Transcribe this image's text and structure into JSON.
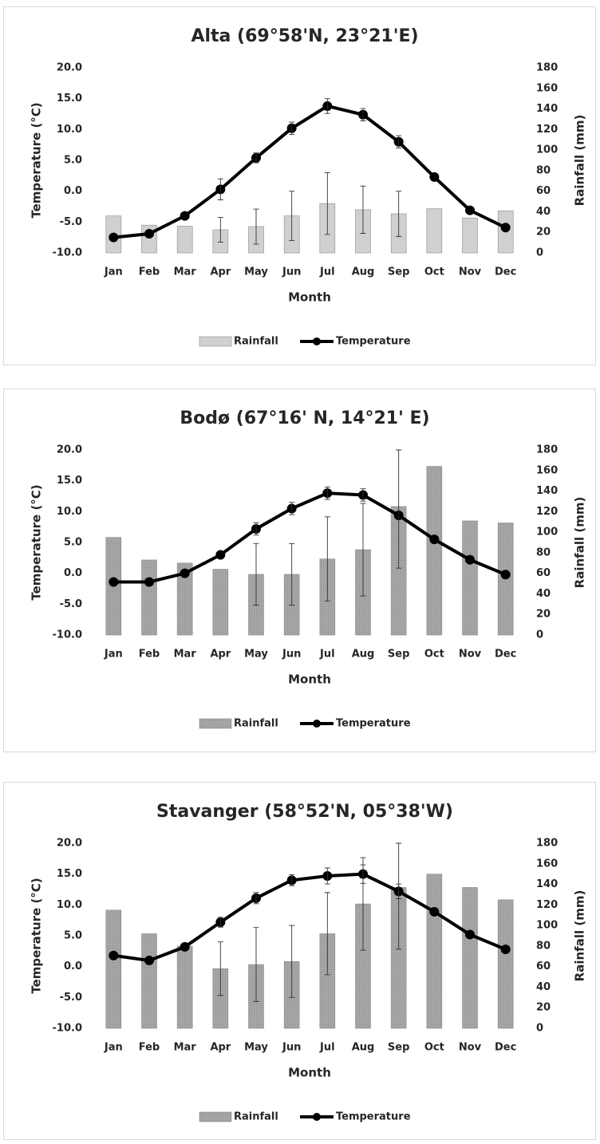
{
  "chart_data": [
    {
      "type": "combo",
      "title": "Alta (69°58'N, 23°21'E)",
      "x_label": "Month",
      "y_label": "Temperature (°C)",
      "y2_label": "Rainfall (mm)",
      "categories": [
        "Jan",
        "Feb",
        "Mar",
        "Apr",
        "May",
        "Jun",
        "Jul",
        "Aug",
        "Sep",
        "Oct",
        "Nov",
        "Dec"
      ],
      "ylim": [
        -10,
        20
      ],
      "yticks": [
        {
          "value": -10,
          "label": "-10.0"
        },
        {
          "value": -5,
          "label": "-5.0"
        },
        {
          "value": 0,
          "label": "0.0"
        },
        {
          "value": 5,
          "label": "5.0"
        },
        {
          "value": 10,
          "label": "10.0"
        },
        {
          "value": 15,
          "label": "15.0"
        },
        {
          "value": 20,
          "label": "20.0"
        }
      ],
      "y2lim": [
        0,
        180
      ],
      "y2ticks": [
        0,
        20,
        40,
        60,
        80,
        100,
        120,
        140,
        160,
        180
      ],
      "series": [
        {
          "name": "Rainfall",
          "type": "bar",
          "axis": "y2",
          "color": "#d0d0d0",
          "values": [
            36,
            27,
            26,
            22.5,
            25.6,
            36,
            48,
            42,
            38,
            43,
            34,
            41
          ],
          "errors": [
            null,
            null,
            null,
            12,
            17,
            24,
            30,
            23,
            22,
            null,
            null,
            null
          ]
        },
        {
          "name": "Temperature",
          "type": "line",
          "color": "#000000",
          "values": [
            -7.5,
            -6.9,
            -4.0,
            0.3,
            5.4,
            10.2,
            13.8,
            12.4,
            8.0,
            2.3,
            -3.1,
            -5.9
          ],
          "errors": [
            null,
            null,
            null,
            1.7,
            0.8,
            1.0,
            1.2,
            1.0,
            1.0,
            null,
            null,
            null
          ]
        }
      ]
    },
    {
      "type": "combo",
      "title": "Bodø (67°16' N, 14°21' E)",
      "x_label": "Month",
      "y_label": "Temperature (°C)",
      "y2_label": "Rainfall (mm)",
      "categories": [
        "Jan",
        "Feb",
        "Mar",
        "Apr",
        "May",
        "Jun",
        "Jul",
        "Aug",
        "Sep",
        "Oct",
        "Nov",
        "Dec"
      ],
      "ylim": [
        -10,
        20
      ],
      "yticks": [
        {
          "value": -10,
          "label": "-10.0"
        },
        {
          "value": -5,
          "label": "-5.0"
        },
        {
          "value": 0,
          "label": "0.0"
        },
        {
          "value": 5,
          "label": "5.0"
        },
        {
          "value": 10,
          "label": "10.0"
        },
        {
          "value": 15,
          "label": "15.0"
        },
        {
          "value": 20,
          "label": "20.0"
        }
      ],
      "y2lim": [
        0,
        180
      ],
      "y2ticks": [
        0,
        20,
        40,
        60,
        80,
        100,
        120,
        140,
        160,
        180
      ],
      "series": [
        {
          "name": "Rainfall",
          "type": "bar",
          "axis": "y2",
          "color": "#a6a6a6",
          "values": [
            95,
            73,
            70,
            64,
            59,
            59,
            74,
            83,
            125,
            164,
            111,
            109
          ],
          "errors": [
            null,
            null,
            null,
            null,
            30,
            30,
            41,
            45,
            60,
            null,
            null,
            null
          ]
        },
        {
          "name": "Temperature",
          "type": "line",
          "color": "#000000",
          "values": [
            -1.4,
            -1.4,
            0.0,
            3.0,
            7.2,
            10.5,
            13.0,
            12.7,
            9.4,
            5.5,
            2.2,
            -0.2
          ],
          "errors": [
            null,
            null,
            null,
            null,
            1.0,
            1.0,
            1.0,
            1.0,
            null,
            null,
            null,
            null
          ]
        }
      ]
    },
    {
      "type": "combo",
      "title": "Stavanger (58°52'N, 05°38'W)",
      "x_label": "Month",
      "y_label": "Temperature (°C)",
      "y2_label": "Rainfall (mm)",
      "categories": [
        "Jan",
        "Feb",
        "Mar",
        "Apr",
        "May",
        "Jun",
        "Jul",
        "Aug",
        "Sep",
        "Oct",
        "Nov",
        "Dec"
      ],
      "ylim": [
        -10,
        20
      ],
      "yticks": [
        {
          "value": -10,
          "label": "-10.0"
        },
        {
          "value": -5,
          "label": "-5.0"
        },
        {
          "value": 0,
          "label": "0.0"
        },
        {
          "value": 5,
          "label": "5.0"
        },
        {
          "value": 10,
          "label": "10.0"
        },
        {
          "value": 15,
          "label": "15.0"
        },
        {
          "value": 20,
          "label": "20.0"
        }
      ],
      "y2lim": [
        0,
        180
      ],
      "y2ticks": [
        0,
        20,
        40,
        60,
        80,
        100,
        120,
        140,
        160,
        180
      ],
      "series": [
        {
          "name": "Rainfall",
          "type": "bar",
          "axis": "y2",
          "color": "#a6a6a6",
          "values": [
            115,
            92,
            80,
            58,
            62,
            65,
            92,
            121,
            137,
            150,
            137,
            125
          ],
          "errors": [
            null,
            null,
            null,
            26,
            36,
            35,
            40,
            45,
            60,
            null,
            null,
            null
          ]
        },
        {
          "name": "Temperature",
          "type": "line",
          "color": "#000000",
          "values": [
            1.8,
            1.0,
            3.2,
            7.2,
            11.1,
            14.0,
            14.7,
            15.0,
            12.2,
            8.9,
            5.2,
            2.8
          ],
          "errors": [
            null,
            null,
            null,
            0.8,
            0.9,
            0.9,
            1.3,
            1.5,
            1.2,
            null,
            null,
            null
          ]
        }
      ]
    }
  ]
}
